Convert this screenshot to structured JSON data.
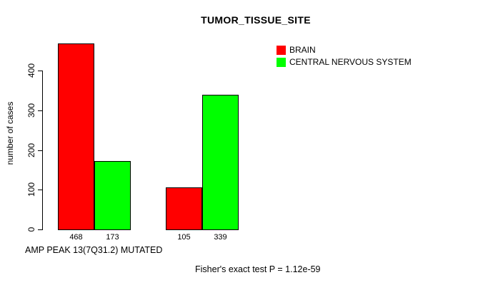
{
  "chart_data": {
    "type": "bar",
    "title": "TUMOR_TISSUE_SITE",
    "ylabel": "number of cases",
    "xlabel": "AMP PEAK 13(7Q31.2) MUTATED",
    "annotation": "Fisher's exact test P = 1.12e-59",
    "yticks": [
      0,
      100,
      200,
      300,
      400
    ],
    "ylim": [
      0,
      470
    ],
    "grid": false,
    "legend_position": "top-right",
    "background_color": "#ffffff",
    "series": [
      {
        "name": "BRAIN",
        "color": "#ff0000",
        "values": [
          468,
          105
        ]
      },
      {
        "name": "CENTRAL NERVOUS SYSTEM",
        "color": "#00ff00",
        "values": [
          173,
          339
        ]
      }
    ],
    "bar_value_labels": [
      "468",
      "173",
      "105",
      "339"
    ]
  }
}
